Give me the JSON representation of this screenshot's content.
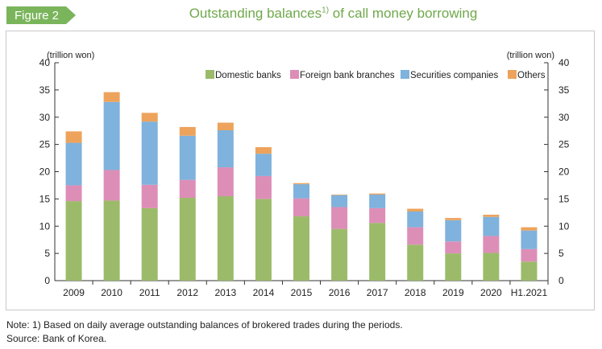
{
  "badge": "Figure 2",
  "title": {
    "main": "Outstanding balances",
    "sup": "1)",
    "rest": " of call money borrowing"
  },
  "notes": {
    "note": "Note: 1) Based on daily average outstanding balances of brokered trades during the periods.",
    "source": "Source: Bank of Korea."
  },
  "colors": {
    "accent": "#7ab55c",
    "title": "#6fa84a"
  },
  "chart_data": {
    "type": "bar",
    "stacked": true,
    "categories": [
      "2009",
      "2010",
      "2011",
      "2012",
      "2013",
      "2014",
      "2015",
      "2016",
      "2017",
      "2018",
      "2019",
      "2020",
      "H1.2021"
    ],
    "series": [
      {
        "name": "Domestic banks",
        "color": "#9cbb6a",
        "values": [
          14.6,
          14.7,
          13.3,
          15.2,
          15.5,
          15.0,
          11.8,
          9.5,
          10.6,
          6.6,
          5.0,
          5.1,
          3.5
        ]
      },
      {
        "name": "Foreign bank branches",
        "color": "#dd8eb7",
        "values": [
          2.9,
          5.6,
          4.3,
          3.3,
          5.3,
          4.2,
          3.3,
          4.0,
          2.7,
          3.2,
          2.2,
          3.1,
          2.3
        ]
      },
      {
        "name": "Securities companies",
        "color": "#7fb2dc",
        "values": [
          7.8,
          12.5,
          11.6,
          8.1,
          6.8,
          4.1,
          2.6,
          2.2,
          2.5,
          2.9,
          3.9,
          3.5,
          3.4
        ]
      },
      {
        "name": "Others",
        "color": "#eda35c",
        "values": [
          2.1,
          1.8,
          1.6,
          1.6,
          1.4,
          1.2,
          0.2,
          0.1,
          0.2,
          0.5,
          0.4,
          0.4,
          0.6
        ]
      }
    ],
    "ylim": [
      0,
      40
    ],
    "yticks": [
      0,
      5,
      10,
      15,
      20,
      25,
      30,
      35,
      40
    ],
    "ylabel_left": "(trillion won)",
    "ylabel_right": "(trillion won)",
    "grid": false,
    "legend": "top-right"
  }
}
